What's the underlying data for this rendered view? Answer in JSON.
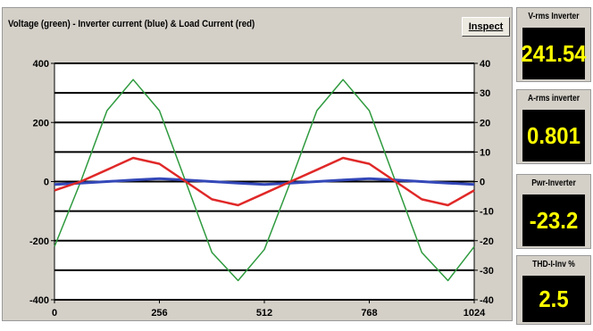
{
  "scope": {
    "title": "Voltage (green) - Inverter current (blue) & Load Current (red)",
    "inspect_label": "Inspect",
    "left_axis_ticks": [
      "400",
      "200",
      "0",
      "-200",
      "-400"
    ],
    "right_axis_ticks": [
      "40",
      "30",
      "20",
      "10",
      "0",
      "-10",
      "-20",
      "-30",
      "-40"
    ],
    "x_axis_ticks": [
      "0",
      "256",
      "512",
      "768",
      "1024"
    ]
  },
  "meters": [
    {
      "label": "V-rms Inverter",
      "value": "241.54"
    },
    {
      "label": "A-rms inverter",
      "value": "0.801"
    },
    {
      "label": "Pwr-Inverter",
      "value": "-23.2"
    },
    {
      "label": "THD-I-Inv  %",
      "value": "2.5"
    }
  ],
  "colors": {
    "voltage": "#2e9a3e",
    "inverter_current": "#3448b8",
    "load_current": "#e02828",
    "meter_text": "#ffff00",
    "meter_bg": "#000000"
  },
  "chart_data": {
    "type": "line",
    "title": "Voltage (green) - Inverter current (blue) & Load Current (red)",
    "x": [
      0,
      64,
      128,
      192,
      256,
      320,
      384,
      448,
      512,
      576,
      640,
      704,
      768,
      832,
      896,
      960,
      1024
    ],
    "xlim": [
      0,
      1024
    ],
    "ylim_left": [
      -400,
      400
    ],
    "ylim_right": [
      -40,
      40
    ],
    "series": [
      {
        "axis": "left",
        "values": [
          -220,
          0,
          240,
          345,
          240,
          0,
          -240,
          -335,
          -230,
          0,
          240,
          345,
          240,
          0,
          -240,
          -335,
          -220
        ]
      },
      {
        "axis": "right",
        "values": [
          -1,
          -0.5,
          0,
          0.5,
          1,
          0.5,
          0,
          -0.5,
          -1,
          -0.5,
          0,
          0.5,
          1,
          0.5,
          0,
          -0.5,
          -1
        ]
      },
      {
        "axis": "right",
        "values": [
          -3,
          0,
          4,
          8,
          6,
          0,
          -6,
          -8,
          -4,
          0,
          4,
          8,
          6,
          0,
          -6,
          -8,
          -3
        ]
      }
    ]
  }
}
